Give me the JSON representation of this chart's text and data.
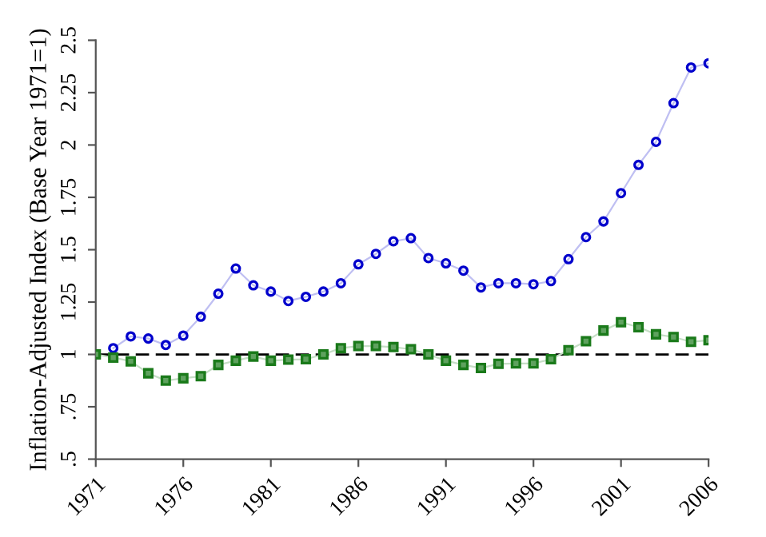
{
  "chart_data": {
    "type": "line",
    "ylabel": "Inflation-Adjusted Index (Base Year 1971=1)",
    "x": [
      1971,
      1972,
      1973,
      1974,
      1975,
      1976,
      1977,
      1978,
      1979,
      1980,
      1981,
      1982,
      1983,
      1984,
      1985,
      1986,
      1987,
      1988,
      1989,
      1990,
      1991,
      1992,
      1993,
      1994,
      1995,
      1996,
      1997,
      1998,
      1999,
      2000,
      2001,
      2002,
      2003,
      2004,
      2005,
      2006
    ],
    "series": [
      {
        "color": "#0000cc",
        "marker": "circle",
        "values": [
          null,
          1.03,
          1.086,
          1.076,
          1.045,
          1.09,
          1.18,
          1.29,
          1.41,
          1.33,
          1.3,
          1.255,
          1.275,
          1.3,
          1.34,
          1.43,
          1.48,
          1.54,
          1.555,
          1.46,
          1.435,
          1.4,
          1.32,
          1.34,
          1.34,
          1.335,
          1.35,
          1.455,
          1.56,
          1.635,
          1.77,
          1.905,
          2.015,
          2.2,
          2.37,
          2.39
        ]
      },
      {
        "color": "#1a7a1a",
        "marker": "square",
        "values": [
          1.0,
          0.985,
          0.967,
          0.91,
          0.875,
          0.886,
          0.896,
          0.95,
          0.97,
          0.99,
          0.97,
          0.975,
          0.977,
          1.0,
          1.03,
          1.04,
          1.04,
          1.035,
          1.025,
          1.0,
          0.97,
          0.95,
          0.935,
          0.955,
          0.957,
          0.957,
          0.977,
          1.02,
          1.063,
          1.114,
          1.154,
          1.13,
          1.096,
          1.083,
          1.06,
          1.068
        ]
      }
    ],
    "ref_lines": [
      {
        "axis": "y",
        "value": 1,
        "color": "#000000",
        "line_style": "dashed"
      }
    ],
    "xlim": [
      1971,
      2006
    ],
    "xticks": [
      1971,
      1976,
      1981,
      1986,
      1991,
      1996,
      2001,
      2006
    ],
    "ylim": [
      0.5,
      2.5
    ],
    "yticks": [
      {
        "value": 0.5,
        "label": ".5"
      },
      {
        "value": 0.75,
        "label": ".75"
      },
      1,
      1.25,
      1.5,
      1.75,
      2,
      2.25,
      2.5
    ],
    "grid": false,
    "legend": false
  }
}
